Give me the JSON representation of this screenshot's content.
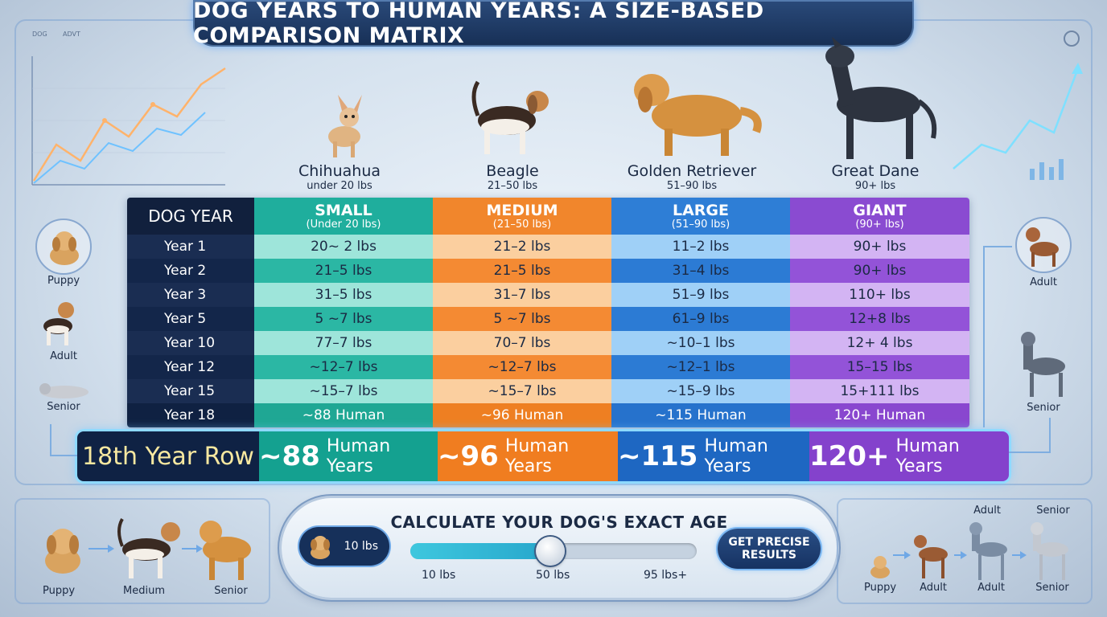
{
  "title": "DOG YEARS TO HUMAN YEARS: A SIZE-BASED COMPARISON MATRIX",
  "corner_labels": [
    "DOG",
    "ADVT"
  ],
  "breeds": [
    {
      "name": "Chihuahua",
      "weight": "under 20 lbs"
    },
    {
      "name": "Beagle",
      "weight": "21–50 lbs"
    },
    {
      "name": "Golden Retriever",
      "weight": "51–90 lbs"
    },
    {
      "name": "Great Dane",
      "weight": "90+ lbs"
    }
  ],
  "table": {
    "header": {
      "dog_year": "DOG YEAR",
      "small": {
        "label": "SMALL",
        "sub": "(Under 20 lbs)"
      },
      "medium": {
        "label": "MEDIUM",
        "sub": "(21–50 lbs)"
      },
      "large": {
        "label": "LARGE",
        "sub": "(51–90 lbs)"
      },
      "giant": {
        "label": "GIANT",
        "sub": "(90+ lbs)"
      }
    },
    "rows": [
      {
        "year": "Year 1",
        "small": "20~ 2 lbs",
        "medium": "21–2 lbs",
        "large": "11–2 lbs",
        "giant": "90+ lbs"
      },
      {
        "year": "Year 2",
        "small": "21–5 lbs",
        "medium": "21–5 lbs",
        "large": "31–4 lbs",
        "giant": "90+ lbs"
      },
      {
        "year": "Year 3",
        "small": "31–5 lbs",
        "medium": "31–7 lbs",
        "large": "51–9 lbs",
        "giant": "110+ lbs"
      },
      {
        "year": "Year 5",
        "small": "5 ~7 lbs",
        "medium": "5 ~7 lbs",
        "large": "61–9 lbs",
        "giant": "12+8 lbs"
      },
      {
        "year": "Year 10",
        "small": "77–7 lbs",
        "medium": "70–7 lbs",
        "large": "~10–1 lbs",
        "giant": "12+ 4 lbs"
      },
      {
        "year": "Year 12",
        "small": "~12–7 lbs",
        "medium": "~12–7 lbs",
        "large": "~12–1 lbs",
        "giant": "15–15 lbs"
      },
      {
        "year": "Year 15",
        "small": "~15–7 lbs",
        "medium": "~15–7 lbs",
        "large": "~15–9 lbs",
        "giant": "15+111 lbs"
      },
      {
        "year": "Year 18",
        "small": "~88 Human",
        "medium": "~96 Human",
        "large": "~115 Human",
        "giant": "120+ Human"
      }
    ]
  },
  "highlight": {
    "label": "18th Year Row",
    "small": {
      "value": "~88",
      "unit": "Human Years"
    },
    "medium": {
      "value": "~96",
      "unit": "Human Years"
    },
    "large": {
      "value": "~115",
      "unit": "Human Years"
    },
    "giant": {
      "value": "120+",
      "unit": "Human Years"
    }
  },
  "left_stages": [
    "Puppy",
    "Adult",
    "Senior"
  ],
  "right_stages": [
    "Adult",
    "Senior"
  ],
  "bottom_left_labels": [
    "Puppy",
    "Medium",
    "Senior"
  ],
  "bottom_right_top_labels": [
    "Adult",
    "Senior"
  ],
  "bottom_right_labels": [
    "Puppy",
    "Adult",
    "Adult",
    "Senior"
  ],
  "calculator": {
    "title": "CALCULATE YOUR DOG'S EXACT AGE",
    "selected_weight": "10 lbs",
    "slider_fraction": 0.49,
    "ticks": [
      "10 lbs",
      "50 lbs",
      "95 lbs+"
    ],
    "button": "GET PRECISE RESULTS"
  },
  "colors": {
    "small": "#1fae9d",
    "medium": "#f1862c",
    "large": "#2e7ed6",
    "giant": "#8a4bd1",
    "dark": "#11203d"
  }
}
